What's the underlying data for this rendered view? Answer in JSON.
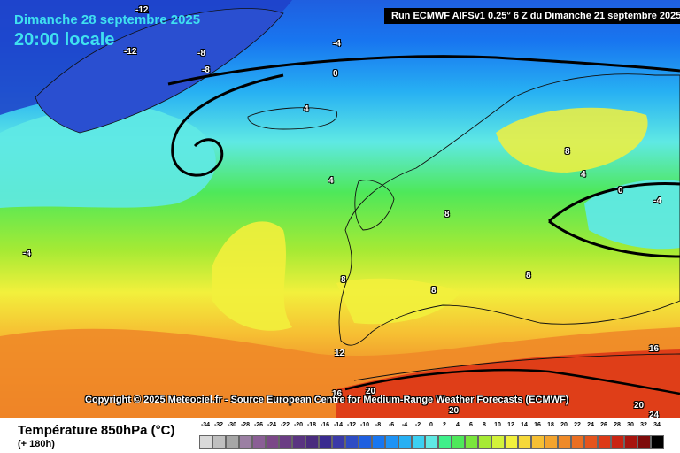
{
  "header": {
    "date": "Dimanche 28 septembre 2025",
    "time": "20:00 locale",
    "run": "Run ECMWF AIFSv1 0.25° 6 Z du Dimanche 21 septembre 2025"
  },
  "map": {
    "copyright": "Copyright © 2025 Meteociel.fr - Source European Centre for Medium-Range Weather Forecasts (ECMWF)",
    "contour_labels": [
      "-12",
      "-12",
      "-8",
      "-8",
      "-4",
      "0",
      "-4",
      "4",
      "4",
      "0",
      "-4",
      "8",
      "8",
      "4",
      "8",
      "8",
      "8",
      "12",
      "16",
      "20",
      "20",
      "16",
      "20",
      "24"
    ]
  },
  "footer": {
    "title": "Température 850hPa (°C)",
    "lead": "(+ 180h)"
  },
  "legend": {
    "values": [
      "-34",
      "-32",
      "-30",
      "-28",
      "-26",
      "-24",
      "-22",
      "-20",
      "-18",
      "-16",
      "-14",
      "-12",
      "-10",
      "-8",
      "-6",
      "-4",
      "-2",
      "0",
      "2",
      "4",
      "6",
      "8",
      "10",
      "12",
      "14",
      "16",
      "18",
      "20",
      "22",
      "24",
      "26",
      "28",
      "30",
      "32",
      "34"
    ],
    "colors": [
      "#d9d9d9",
      "#bfbfbf",
      "#a6a6a6",
      "#9b7fa3",
      "#8a5f95",
      "#7b4888",
      "#6a3c84",
      "#5a3481",
      "#4a2c7e",
      "#3a2b90",
      "#3a3aa8",
      "#2e4cc4",
      "#1f5fe0",
      "#1876f0",
      "#1e93f5",
      "#27b0f3",
      "#3cd0f2",
      "#5fe9e4",
      "#3ff08a",
      "#4ee85a",
      "#7ae63c",
      "#a6ea34",
      "#d3f23a",
      "#f2f03c",
      "#f5d83a",
      "#f6bf33",
      "#f3a42e",
      "#ef8a28",
      "#ea6f22",
      "#e4541c",
      "#dd3a17",
      "#c92412",
      "#a8140e",
      "#7e0b0a",
      "#000000"
    ]
  }
}
